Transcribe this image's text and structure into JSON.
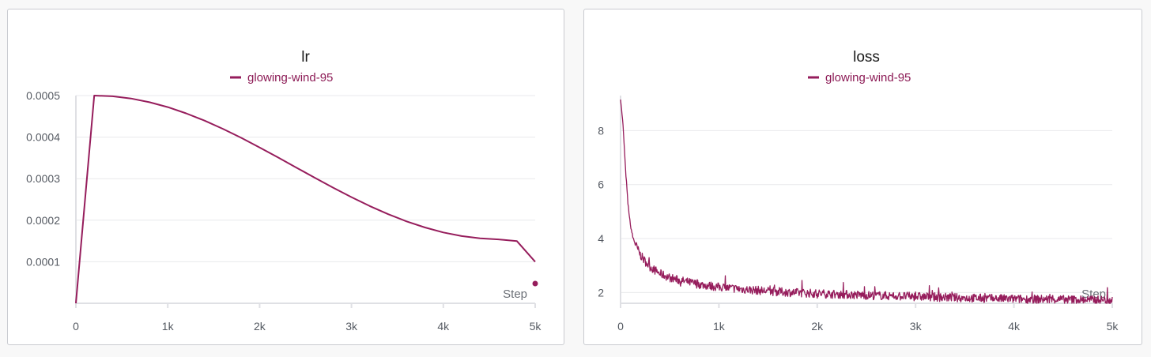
{
  "chart_data": [
    {
      "type": "line",
      "title": "lr",
      "xlabel": "Step",
      "ylabel": "",
      "xlim": [
        0,
        5000
      ],
      "ylim": [
        0,
        0.0005
      ],
      "x_ticks": [
        "0",
        "1k",
        "2k",
        "3k",
        "4k",
        "5k"
      ],
      "y_ticks": [
        "0.0001",
        "0.0002",
        "0.0003",
        "0.0004",
        "0.0005"
      ],
      "legend": "top-center",
      "grid": true,
      "series": [
        {
          "name": "glowing-wind-95",
          "color": "#961d5c",
          "x": [
            0,
            200,
            400,
            600,
            800,
            1000,
            1200,
            1400,
            1600,
            1800,
            2000,
            2200,
            2400,
            2600,
            2800,
            3000,
            3200,
            3400,
            3600,
            3800,
            4000,
            4200,
            4400,
            4600,
            4800,
            5000
          ],
          "y": [
            0.0,
            0.0005,
            0.0004982,
            0.0004929,
            0.0004841,
            0.0004722,
            0.0004573,
            0.0004397,
            0.0004199,
            0.0003982,
            0.0003751,
            0.0003511,
            0.0003266,
            0.0003022,
            0.0002783,
            0.0002555,
            0.000234,
            0.0002145,
            0.0001972,
            0.0001825,
            0.0001706,
            0.0001618,
            0.0001562,
            0.0001538,
            0.0001499,
            0.0001
          ]
        }
      ]
    },
    {
      "type": "line",
      "title": "loss",
      "xlabel": "Step",
      "ylabel": "",
      "xlim": [
        0,
        5000
      ],
      "ylim": [
        1.6,
        9.3
      ],
      "x_ticks": [
        "0",
        "1k",
        "2k",
        "3k",
        "4k",
        "5k"
      ],
      "y_ticks": [
        "2",
        "4",
        "6",
        "8"
      ],
      "legend": "top-center",
      "grid": true,
      "series": [
        {
          "name": "glowing-wind-95",
          "color": "#961d5c",
          "x": [
            0,
            25,
            50,
            75,
            100,
            125,
            150,
            200,
            250,
            300,
            400,
            500,
            600,
            800,
            1000,
            1250,
            1500,
            1750,
            2000,
            2500,
            3000,
            3500,
            4000,
            4500,
            5000
          ],
          "y": [
            9.2,
            8.2,
            6.6,
            5.3,
            4.5,
            4.05,
            3.8,
            3.4,
            3.15,
            2.95,
            2.7,
            2.55,
            2.45,
            2.3,
            2.2,
            2.12,
            2.05,
            2.0,
            1.96,
            1.9,
            1.85,
            1.8,
            1.76,
            1.74,
            1.72
          ]
        }
      ]
    }
  ]
}
